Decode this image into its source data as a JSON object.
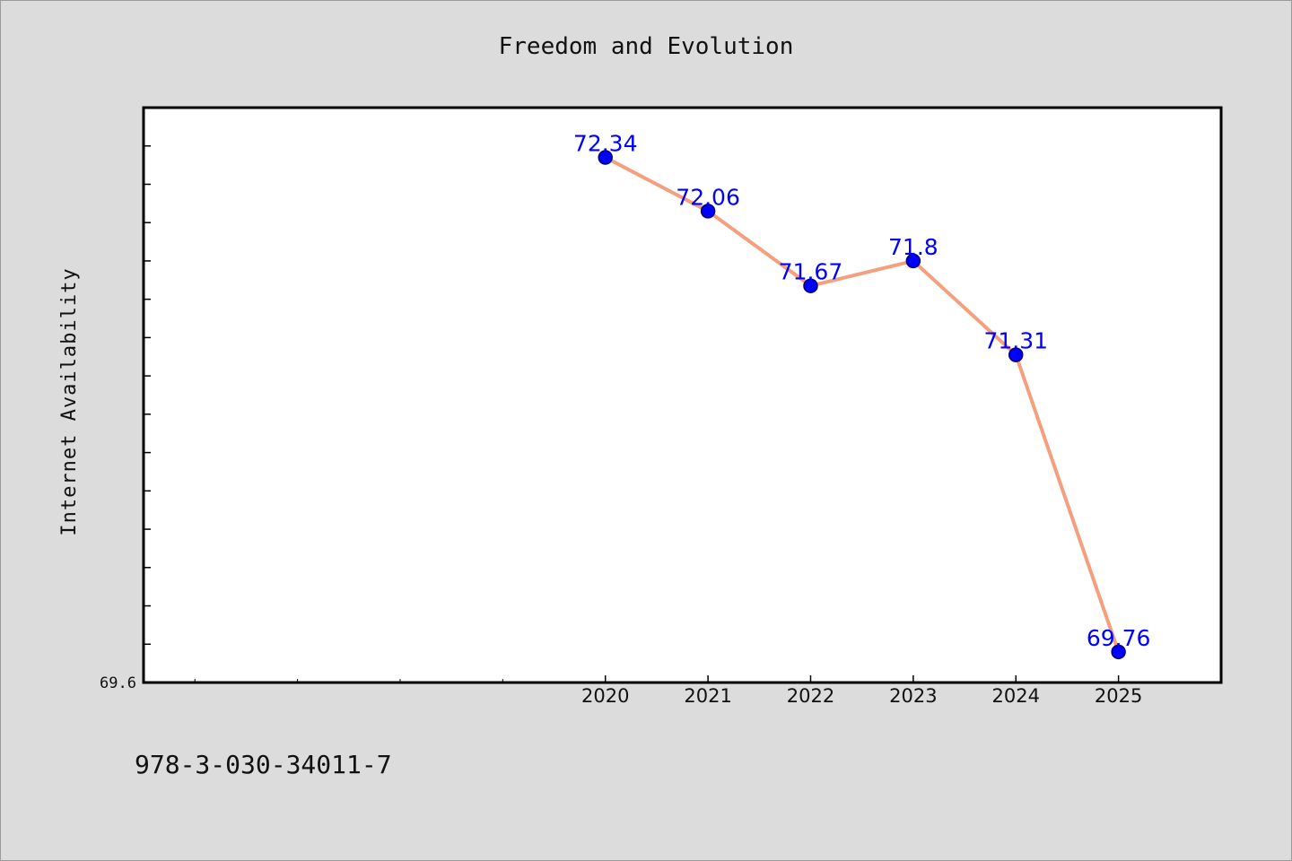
{
  "chart_data": {
    "type": "line",
    "title": "Freedom and Evolution",
    "xlabel": "",
    "ylabel": "Internet Availability",
    "x": [
      "2020",
      "2021",
      "2022",
      "2023",
      "2024",
      "2025"
    ],
    "series": [
      {
        "values": [
          72.34,
          72.06,
          71.67,
          71.8,
          71.31,
          69.76
        ]
      }
    ],
    "data_labels": [
      "72.34",
      "72.06",
      "71.67",
      "71.8",
      "71.31",
      "69.76"
    ],
    "y_tick_labels": [
      "69.6"
    ],
    "xlim": [
      2015.5,
      2026.0
    ],
    "ylim": [
      69.6,
      72.6
    ],
    "grid": false,
    "colors": {
      "line": "#f4a07e",
      "marker": "#0000ff",
      "marker_edge": "#00006e",
      "data_label": "#0000ff"
    }
  },
  "footer": {
    "isbn": "978-3-030-34011-7"
  }
}
